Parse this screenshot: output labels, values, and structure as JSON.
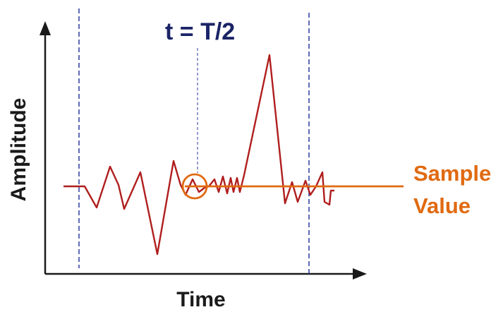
{
  "labels": {
    "center_time": "t = T/2",
    "y_axis": "Amplitude",
    "x_axis": "Time",
    "sample_value_line1": "Sample",
    "sample_value_line2": "Value"
  },
  "colors": {
    "axis": "#1a1a1a",
    "signal": "#b01e1e",
    "sample": "#e06a10",
    "markers": "#2a3aa0",
    "center_title": "#1a2466"
  }
}
